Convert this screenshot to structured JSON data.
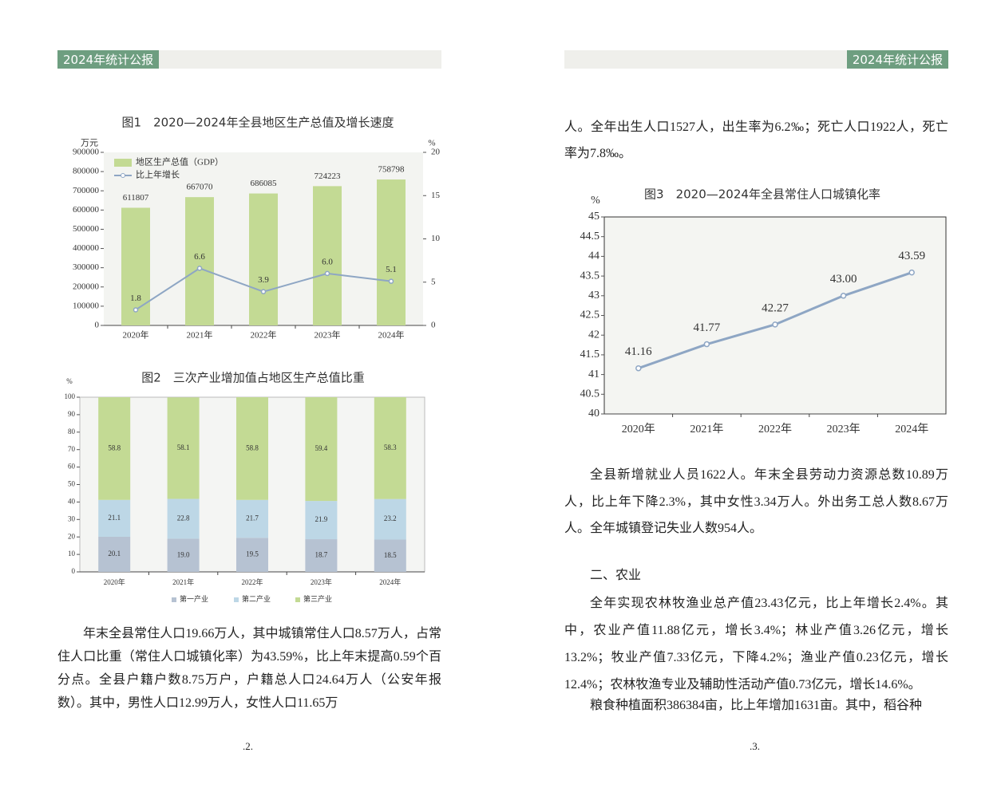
{
  "pages": [
    {
      "header": "2024年统计公报",
      "paragraphs": [
        "年末全县常住人口19.66万人，其中城镇常住人口8.57万人，占常住人口比重（常住人口城镇化率）为43.59%，比上年末提高0.59个百分点。全县户籍户数8.75万户，户籍总人口24.64万人（公安年报数）。其中，男性人口12.99万人，女性人口11.65万"
      ],
      "page_number": ".2."
    },
    {
      "header": "2024年统计公报",
      "paragraphs": [
        "人。全年出生人口1527人，出生率为6.2‰；死亡人口1922人，死亡率为7.8‰。",
        "全县新增就业人员1622人。年末全县劳动力资源总数10.89万人，比上年下降2.3%，其中女性3.34万人。外出务工总人数8.67万人。全年城镇登记失业人数954人。",
        "二、农业",
        "全年实现农林牧渔业总产值23.43亿元，比上年增长2.4%。其中，农业产值11.88亿元，增长3.4%；林业产值3.26亿元，增长13.2%；牧业产值7.33亿元，下降4.2%；渔业产值0.23亿元，增长12.4%；农林牧渔专业及辅助性活动产值0.73亿元，增长14.6%。",
        "粮食种植面积386384亩，比上年增加1631亩。其中，稻谷种"
      ],
      "page_number": ".3."
    }
  ],
  "chart_data": [
    {
      "type": "bar",
      "title": "图1　2020—2024年全县地区生产总值及增长速度",
      "y_unit": "万元",
      "y2_unit": "%",
      "categories": [
        "2020年",
        "2021年",
        "2022年",
        "2023年",
        "2024年"
      ],
      "series": [
        {
          "name": "地区生产总值（GDP）",
          "color": "#c3da94",
          "values": [
            611807,
            667070,
            686085,
            724223,
            758798
          ]
        },
        {
          "name": "比上年增长",
          "color": "#8ea6c4",
          "type": "line",
          "axis": "y2",
          "values": [
            1.8,
            6.6,
            3.9,
            6.0,
            5.1
          ],
          "value_labels": [
            "1.8",
            "6.6",
            "3.9",
            "6.0",
            "5.1"
          ]
        }
      ],
      "ylim": [
        0,
        900000
      ],
      "yticks": [
        0,
        100000,
        200000,
        300000,
        400000,
        500000,
        600000,
        700000,
        800000,
        900000
      ],
      "y2lim": [
        0,
        20
      ],
      "y2ticks": [
        0,
        5,
        10,
        15,
        20
      ],
      "legend": "top-left"
    },
    {
      "type": "bar",
      "stacked": true,
      "title": "图2　三次产业增加值占地区生产总值比重",
      "y_unit": "%",
      "categories": [
        "2020年",
        "2021年",
        "2022年",
        "2023年",
        "2024年"
      ],
      "series": [
        {
          "name": "第一产业",
          "color": "#b6c2d2",
          "values": [
            20.1,
            19.0,
            19.5,
            18.7,
            18.5
          ],
          "value_labels": [
            "20.1",
            "19.0",
            "19.5",
            "18.7",
            "18.5"
          ]
        },
        {
          "name": "第二产业",
          "color": "#bdd7e6",
          "values": [
            21.1,
            22.8,
            21.7,
            21.9,
            23.2
          ]
        },
        {
          "name": "第三产业",
          "color": "#c3da94",
          "values": [
            58.8,
            58.1,
            58.8,
            59.4,
            58.3
          ]
        }
      ],
      "ylim": [
        0,
        100
      ],
      "yticks": [
        0,
        10,
        20,
        30,
        40,
        50,
        60,
        70,
        80,
        90,
        100
      ],
      "legend": "bottom"
    },
    {
      "type": "line",
      "title": "图3　2020—2024年全县常住人口城镇化率",
      "y_unit": "%",
      "categories": [
        "2020年",
        "2021年",
        "2022年",
        "2023年",
        "2024年"
      ],
      "values": [
        41.16,
        41.77,
        42.27,
        43.0,
        43.59
      ],
      "value_labels": [
        "41.16",
        "41.77",
        "42.27",
        "43.00",
        "43.59"
      ],
      "color": "#8ea6c4",
      "ylim": [
        40,
        45
      ],
      "yticks": [
        40,
        40.5,
        41,
        41.5,
        42,
        42.5,
        43,
        43.5,
        44,
        44.5,
        45
      ]
    }
  ]
}
